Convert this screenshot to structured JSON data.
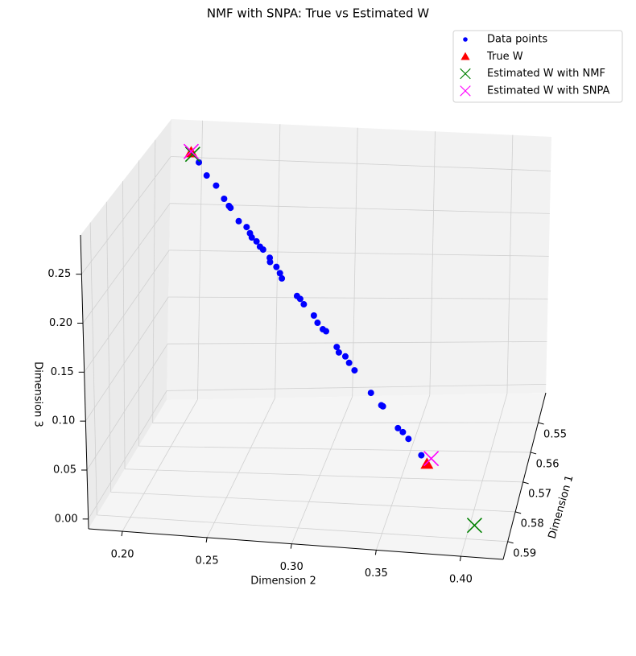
{
  "chart_data": {
    "type": "scatter3d",
    "title": "NMF with SNPA: True vs Estimated W",
    "xlabel": "Dimension 1",
    "ylabel": "Dimension 2",
    "zlabel": "Dimension 3",
    "xlim": [
      0.54,
      0.596
    ],
    "ylim": [
      0.18,
      0.425
    ],
    "zlim": [
      -0.01,
      0.29
    ],
    "xticks": [
      0.55,
      0.56,
      0.57,
      0.58,
      0.59
    ],
    "yticks": [
      {
        "value": 0.2,
        "label": "0.20"
      },
      0.25,
      {
        "value": 0.3,
        "label": "0.30"
      },
      0.35,
      {
        "value": 0.4,
        "label": "0.40"
      }
    ],
    "zticks": [
      {
        "value": 0,
        "label": "0.00"
      },
      0.05,
      {
        "value": 0.1,
        "label": "0.10"
      },
      0.15,
      {
        "value": 0.2,
        "label": "0.20"
      },
      0.25
    ],
    "grid": true,
    "legend": "upper right",
    "series": [
      {
        "name": "Data points",
        "color": "#0000ff",
        "marker": "circle",
        "x": [
          0.542,
          0.543,
          0.545,
          0.546,
          0.548,
          0.549,
          0.549,
          0.551,
          0.551,
          0.552,
          0.553,
          0.553,
          0.554,
          0.554,
          0.555,
          0.556,
          0.556,
          0.557,
          0.558,
          0.56,
          0.56,
          0.561,
          0.562,
          0.563,
          0.564,
          0.564,
          0.566,
          0.567,
          0.567,
          0.568,
          0.569,
          0.572,
          0.573,
          0.573,
          0.576,
          0.576,
          0.577,
          0.579
        ],
        "y": [
          0.195,
          0.201,
          0.208,
          0.215,
          0.222,
          0.226,
          0.227,
          0.234,
          0.239,
          0.242,
          0.244,
          0.247,
          0.25,
          0.252,
          0.257,
          0.258,
          0.262,
          0.265,
          0.267,
          0.278,
          0.28,
          0.283,
          0.29,
          0.293,
          0.297,
          0.299,
          0.307,
          0.309,
          0.313,
          0.316,
          0.32,
          0.332,
          0.339,
          0.34,
          0.351,
          0.354,
          0.358,
          0.367
        ],
        "z": [
          0.26,
          0.252,
          0.243,
          0.235,
          0.226,
          0.221,
          0.219,
          0.21,
          0.204,
          0.2,
          0.198,
          0.194,
          0.191,
          0.188,
          0.182,
          0.18,
          0.175,
          0.171,
          0.168,
          0.155,
          0.152,
          0.149,
          0.14,
          0.135,
          0.131,
          0.129,
          0.118,
          0.115,
          0.111,
          0.107,
          0.102,
          0.087,
          0.077,
          0.076,
          0.062,
          0.058,
          0.054,
          0.043
        ]
      },
      {
        "name": "True W",
        "color": "#ff0000",
        "marker": "triangle",
        "x": [
          0.542,
          0.58
        ],
        "y": [
          0.195,
          0.371
        ],
        "z": [
          0.26,
          0.037
        ]
      },
      {
        "name": "Estimated W with NMF",
        "color": "#008000",
        "marker": "x",
        "x": [
          0.542,
          0.59
        ],
        "y": [
          0.196,
          0.405
        ],
        "z": [
          0.258,
          0.005
        ]
      },
      {
        "name": "Estimated W with SNPA",
        "color": "#ff00ff",
        "marker": "x",
        "x": [
          0.542,
          0.579
        ],
        "y": [
          0.195,
          0.373
        ],
        "z": [
          0.261,
          0.04
        ]
      }
    ]
  }
}
